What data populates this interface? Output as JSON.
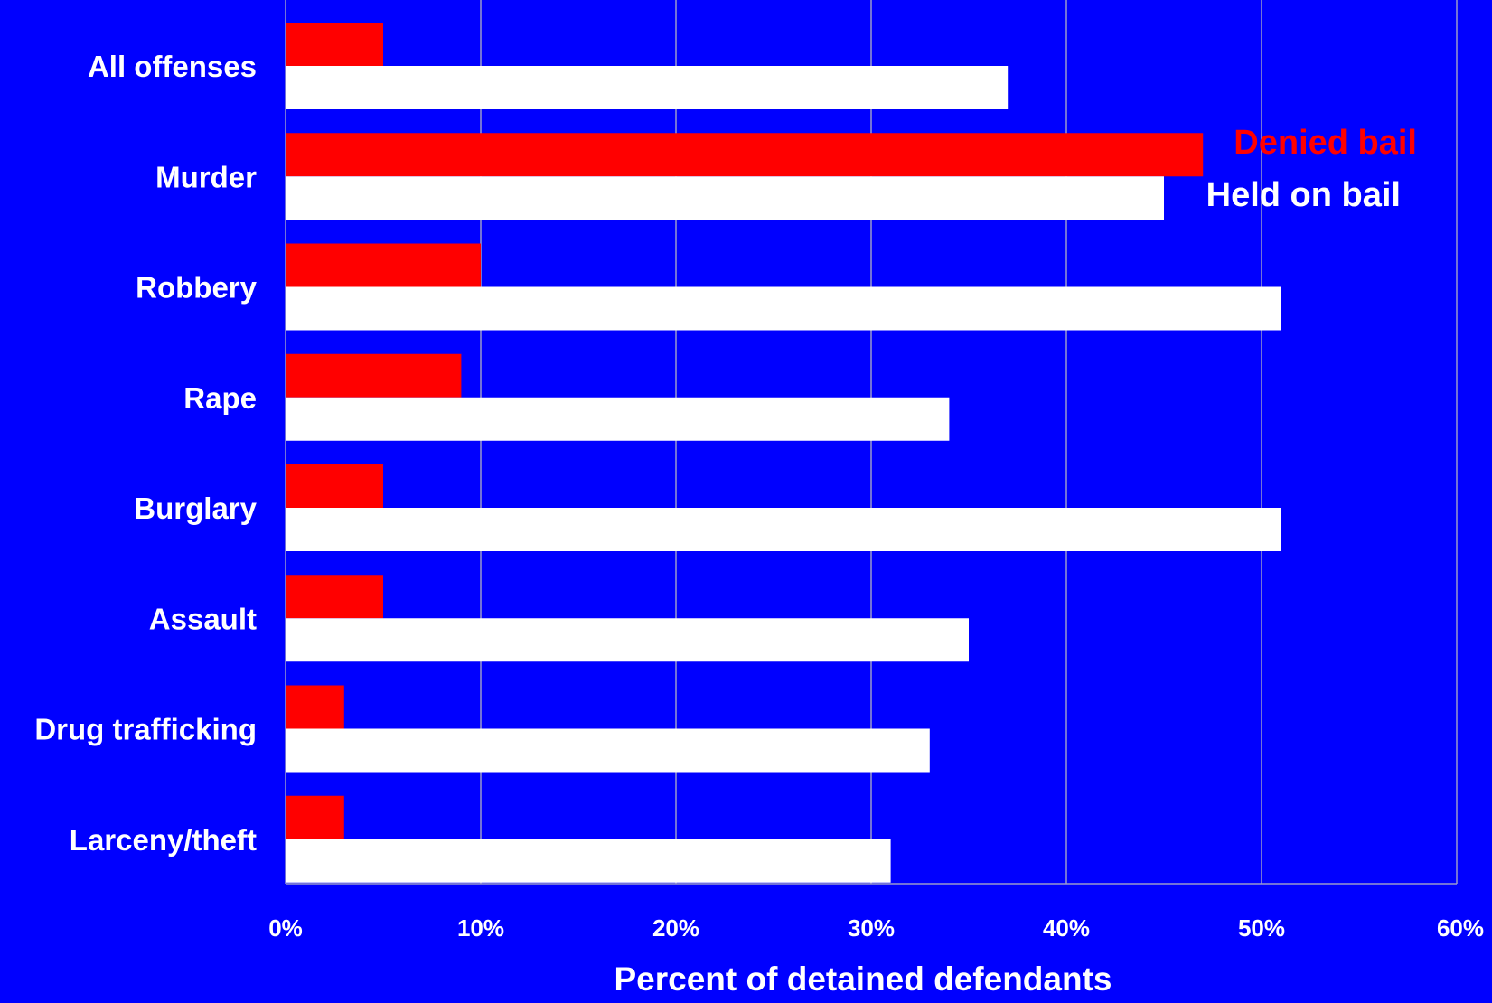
{
  "chart_data": {
    "type": "bar",
    "orientation": "horizontal",
    "title": "",
    "xlabel": "Percent of detained defendants",
    "ylabel": "",
    "xlim": [
      0,
      60
    ],
    "x_ticks": [
      "0%",
      "10%",
      "20%",
      "30%",
      "40%",
      "50%",
      "60%"
    ],
    "categories": [
      "All offenses",
      "Murder",
      "Robbery",
      "Rape",
      "Burglary",
      "Assault",
      "Drug trafficking",
      "Larceny/theft"
    ],
    "series": [
      {
        "name": "Denied bail",
        "color": "#FF0000",
        "values": [
          5,
          47,
          10,
          9,
          5,
          5,
          3,
          3
        ]
      },
      {
        "name": "Held on bail",
        "color": "#FFFFFF",
        "values": [
          37,
          45,
          51,
          34,
          51,
          35,
          33,
          31
        ]
      }
    ],
    "grid": true,
    "legend_position": "top-right",
    "colors": {
      "background": "#0000FF",
      "gridline": "#9999CC",
      "text": "#FFFFFF"
    }
  }
}
